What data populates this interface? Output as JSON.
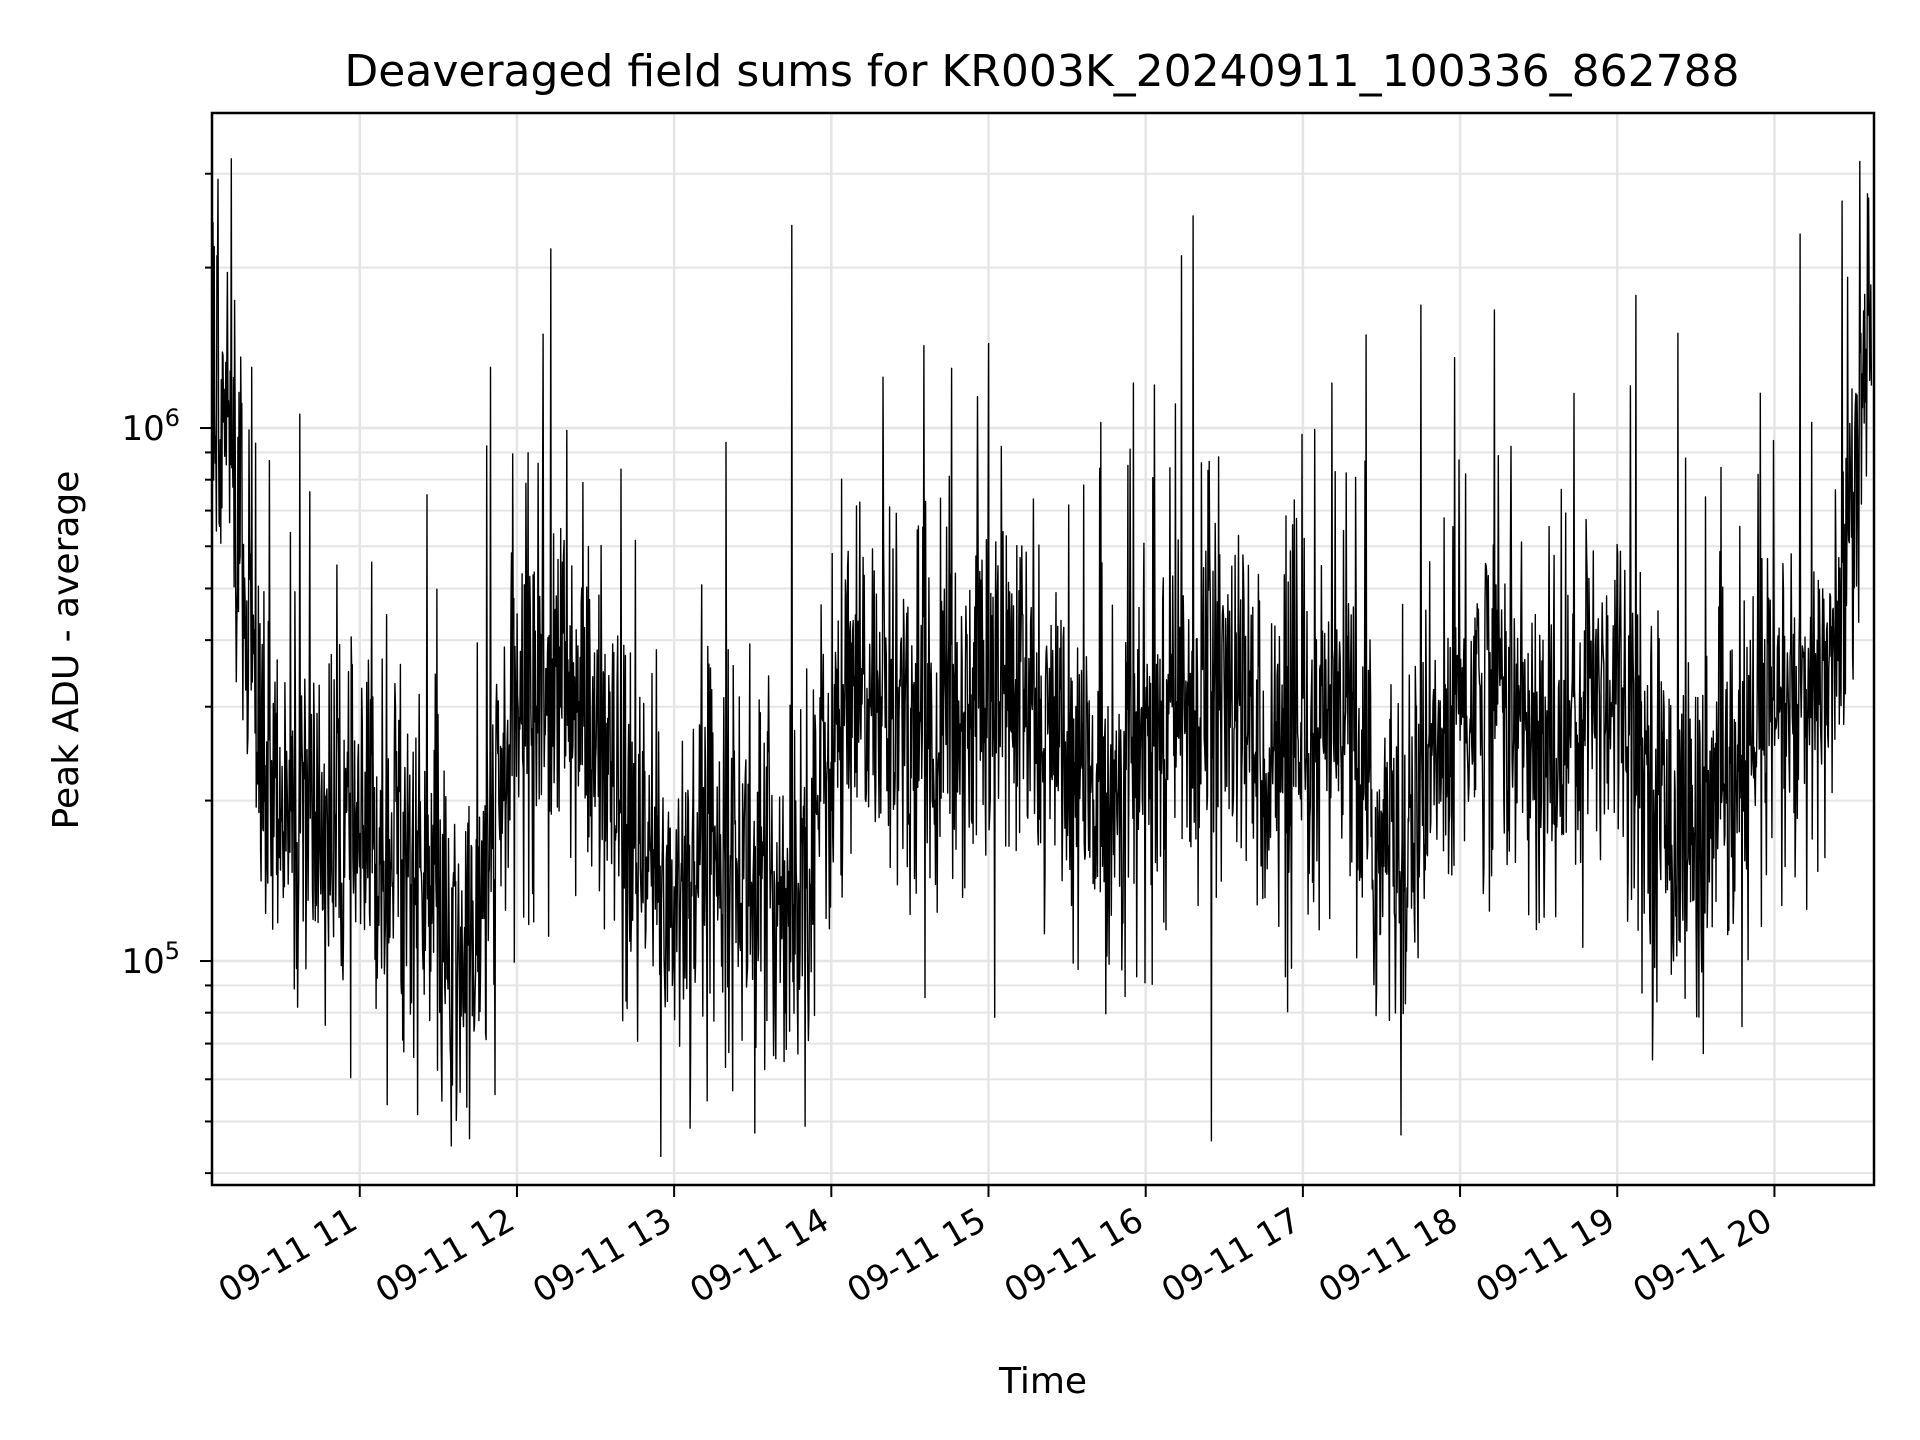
{
  "chart_data": {
    "type": "line",
    "title": "Deaveraged field sums for KR003K_20240911_100336_862788",
    "xlabel": "Time",
    "ylabel": "Peak ADU - average",
    "y_scale": "log",
    "ylim": [
      38000,
      3900000
    ],
    "y_major_ticks": [
      100000,
      1000000
    ],
    "y_major_tick_labels": [
      {
        "base": "10",
        "exp": "5"
      },
      {
        "base": "10",
        "exp": "6"
      }
    ],
    "xlim": [
      "2024-09-11T10:03:36",
      "2024-09-11T20:38:00"
    ],
    "x_ticks": [
      "2024-09-11T11:00",
      "2024-09-11T12:00",
      "2024-09-11T13:00",
      "2024-09-11T14:00",
      "2024-09-11T15:00",
      "2024-09-11T16:00",
      "2024-09-11T17:00",
      "2024-09-11T18:00",
      "2024-09-11T19:00",
      "2024-09-11T20:00"
    ],
    "x_tick_labels": [
      "09-11 11",
      "09-11 12",
      "09-11 13",
      "09-11 14",
      "09-11 15",
      "09-11 16",
      "09-11 17",
      "09-11 18",
      "09-11 19",
      "09-11 20"
    ],
    "x_tick_label_rotation_deg": 30,
    "grid": true,
    "legend": "none",
    "line_color": "#000000",
    "grid_color": "#e5e5e5",
    "series": [
      {
        "x": [
          "2024-09-11T10:04",
          "2024-09-11T10:10",
          "2024-09-11T10:15",
          "2024-09-11T10:20",
          "2024-09-11T10:30",
          "2024-09-11T10:45",
          "2024-09-11T11:00",
          "2024-09-11T11:15",
          "2024-09-11T11:30",
          "2024-09-11T11:35",
          "2024-09-11T11:45",
          "2024-09-11T12:00",
          "2024-09-11T12:15",
          "2024-09-11T12:30",
          "2024-09-11T12:45",
          "2024-09-11T13:00",
          "2024-09-11T13:15",
          "2024-09-11T13:30",
          "2024-09-11T13:45",
          "2024-09-11T14:00",
          "2024-09-11T14:15",
          "2024-09-11T14:30",
          "2024-09-11T14:45",
          "2024-09-11T15:00",
          "2024-09-11T15:15",
          "2024-09-11T15:30",
          "2024-09-11T15:45",
          "2024-09-11T16:00",
          "2024-09-11T16:15",
          "2024-09-11T16:30",
          "2024-09-11T16:45",
          "2024-09-11T17:00",
          "2024-09-11T17:15",
          "2024-09-11T17:30",
          "2024-09-11T17:45",
          "2024-09-11T18:00",
          "2024-09-11T18:15",
          "2024-09-11T18:30",
          "2024-09-11T18:45",
          "2024-09-11T19:00",
          "2024-09-11T19:15",
          "2024-09-11T19:30",
          "2024-09-11T19:45",
          "2024-09-11T20:00",
          "2024-09-11T20:15",
          "2024-09-11T20:25",
          "2024-09-11T20:37"
        ],
        "y": [
          1200000,
          1000000,
          600000,
          250000,
          200000,
          180000,
          160000,
          170000,
          120000,
          90000,
          110000,
          300000,
          350000,
          250000,
          150000,
          130000,
          180000,
          140000,
          130000,
          250000,
          320000,
          280000,
          270000,
          350000,
          300000,
          220000,
          200000,
          250000,
          300000,
          320000,
          250000,
          200000,
          300000,
          150000,
          200000,
          300000,
          350000,
          220000,
          300000,
          350000,
          200000,
          170000,
          200000,
          300000,
          280000,
          450000,
          1500000
        ],
        "spikes": [
          {
            "x": "2024-09-11T10:11",
            "y": 3200000
          },
          {
            "x": "2024-09-11T11:50",
            "y": 1300000
          },
          {
            "x": "2024-09-11T12:10",
            "y": 1500000
          },
          {
            "x": "2024-09-11T13:45",
            "y": 2400000
          },
          {
            "x": "2024-09-11T16:18",
            "y": 2500000
          },
          {
            "x": "2024-09-11T17:45",
            "y": 1700000
          },
          {
            "x": "2024-09-11T19:05",
            "y": 1200000
          },
          {
            "x": "2024-09-11T20:36",
            "y": 2700000
          }
        ],
        "dips": [
          {
            "x": "2024-09-11T11:35",
            "y": 45000
          },
          {
            "x": "2024-09-11T12:55",
            "y": 43000
          },
          {
            "x": "2024-09-11T13:50",
            "y": 49000
          },
          {
            "x": "2024-09-11T16:25",
            "y": 46000
          }
        ]
      }
    ]
  }
}
